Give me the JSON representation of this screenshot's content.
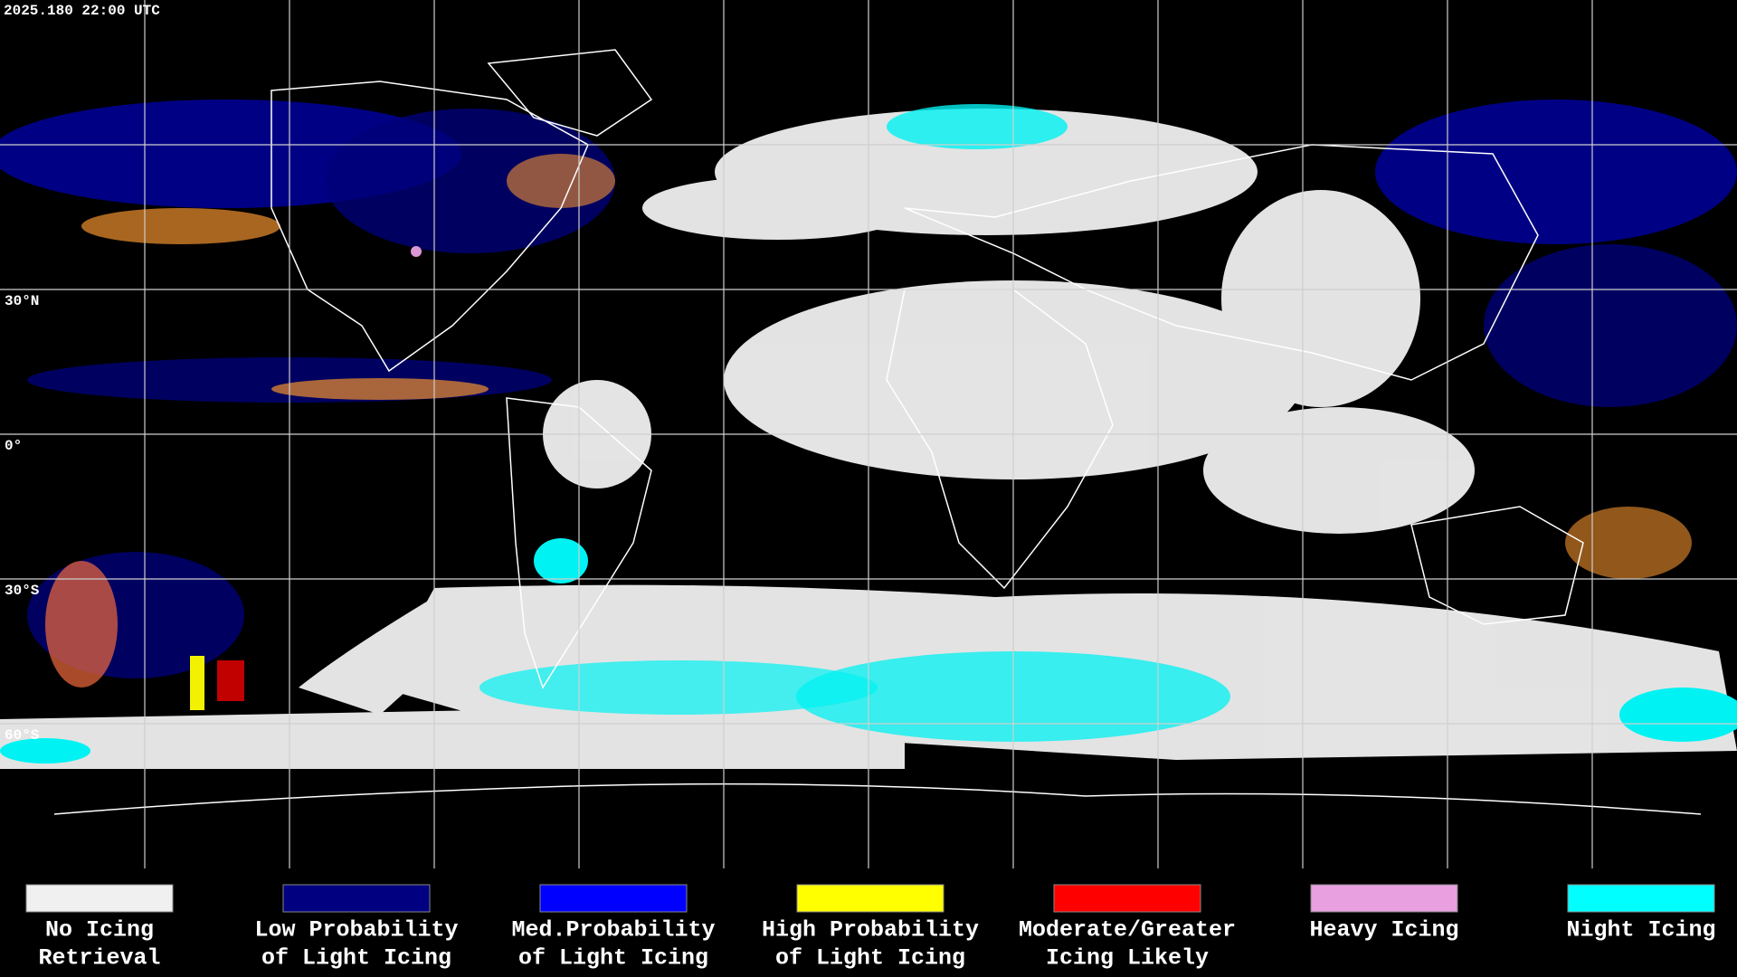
{
  "header": {
    "timestamp": "2025.180 22:00 UTC"
  },
  "map": {
    "latitude_labels": [
      "30°N",
      "0°",
      "30°S",
      "60°S"
    ]
  },
  "legend": {
    "items": [
      {
        "lines": [
          "No Icing",
          "Retrieval"
        ],
        "color": "#f0f0f0"
      },
      {
        "lines": [
          "Low Probability",
          "of Light Icing"
        ],
        "color": "#000080"
      },
      {
        "lines": [
          "Med.Probability",
          "of Light Icing"
        ],
        "color": "#0000ff"
      },
      {
        "lines": [
          "High Probability",
          "of Light Icing"
        ],
        "color": "#ffff00"
      },
      {
        "lines": [
          "Moderate/Greater",
          "Icing Likely"
        ],
        "color": "#ff0000"
      },
      {
        "lines": [
          "Heavy Icing",
          ""
        ],
        "color": "#e8a0e0"
      },
      {
        "lines": [
          "Night Icing",
          ""
        ],
        "color": "#00ffff"
      }
    ]
  }
}
